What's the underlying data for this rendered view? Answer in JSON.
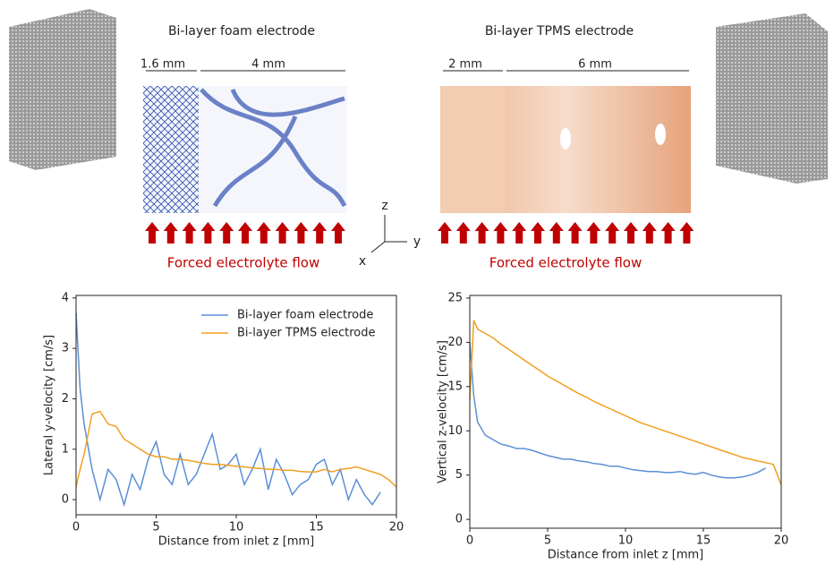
{
  "figure": {
    "foam_title": "Bi-layer foam electrode",
    "tpms_title": "Bi-layer TPMS electrode",
    "foam_dims": [
      "1.6 mm",
      "4 mm"
    ],
    "tpms_dims": [
      "2 mm",
      "6 mm"
    ],
    "flow_labels": [
      "Forced electrolyte flow",
      "Forced electrolyte flow"
    ],
    "axes_labels": {
      "z": "z",
      "y": "y",
      "x": "x"
    }
  },
  "chart_data": [
    {
      "type": "line",
      "x_label": "Distance from inlet z [mm]",
      "y_label": "Lateral y-velocity [cm/s]",
      "x": [
        0,
        0.25,
        0.5,
        1,
        1.5,
        2,
        2.5,
        3,
        3.5,
        4,
        4.5,
        5,
        5.5,
        6,
        6.5,
        7,
        7.5,
        8,
        8.5,
        9,
        9.5,
        10,
        10.5,
        11,
        11.5,
        12,
        12.5,
        13,
        13.5,
        14,
        14.5,
        15,
        15.5,
        16,
        16.5,
        17,
        17.5,
        18,
        18.5,
        19,
        19.5,
        20
      ],
      "xlim": [
        0,
        20
      ],
      "xticks": [
        0,
        5,
        10,
        15,
        20
      ],
      "ylim": [
        -0.3,
        4.05
      ],
      "yticks": [
        0,
        1,
        2,
        3,
        4
      ],
      "legend": "upper right",
      "series": [
        {
          "name": "Bi-layer foam electrode",
          "color": "#5b8fd6",
          "values": [
            3.7,
            2.2,
            1.5,
            0.6,
            0.0,
            0.6,
            0.4,
            -0.1,
            0.5,
            0.2,
            0.8,
            1.15,
            0.5,
            0.3,
            0.9,
            0.3,
            0.5,
            0.9,
            1.3,
            0.6,
            0.7,
            0.9,
            0.3,
            0.6,
            1.0,
            0.2,
            0.8,
            0.5,
            0.1,
            0.3,
            0.4,
            0.7,
            0.8,
            0.3,
            0.6,
            0.0,
            0.4,
            0.1,
            -0.1,
            0.15,
            null,
            null
          ]
        },
        {
          "name": "Bi-layer TPMS electrode",
          "color": "#f0a020",
          "values": [
            0.25,
            0.6,
            0.9,
            1.7,
            1.75,
            1.5,
            1.45,
            1.2,
            1.1,
            1.0,
            0.9,
            0.85,
            0.85,
            0.8,
            0.8,
            0.78,
            0.75,
            0.72,
            0.7,
            0.7,
            0.68,
            0.66,
            0.65,
            0.63,
            0.62,
            0.6,
            0.6,
            0.58,
            0.58,
            0.56,
            0.55,
            0.55,
            0.6,
            0.55,
            0.6,
            0.62,
            0.65,
            0.6,
            0.55,
            0.5,
            0.4,
            0.25
          ]
        }
      ]
    },
    {
      "type": "line",
      "x_label": "Distance from inlet z [mm]",
      "y_label": "Vertical z-velocity [cm/s]",
      "x": [
        0,
        0.25,
        0.5,
        1,
        1.5,
        2,
        2.5,
        3,
        3.5,
        4,
        4.5,
        5,
        5.5,
        6,
        6.5,
        7,
        7.5,
        8,
        8.5,
        9,
        9.5,
        10,
        10.5,
        11,
        11.5,
        12,
        12.5,
        13,
        13.5,
        14,
        14.5,
        15,
        15.5,
        16,
        16.5,
        17,
        17.5,
        18,
        18.5,
        19,
        19.5,
        20
      ],
      "xlim": [
        0,
        20
      ],
      "xticks": [
        0,
        5,
        10,
        15,
        20
      ],
      "ylim": [
        -1,
        25.3
      ],
      "yticks": [
        0,
        5,
        10,
        15,
        20,
        25
      ],
      "series": [
        {
          "name": "Bi-layer foam electrode",
          "color": "#5b8fd6",
          "values": [
            20,
            14,
            11,
            9.5,
            9,
            8.5,
            8.3,
            8,
            8,
            7.8,
            7.5,
            7.2,
            7.0,
            6.8,
            6.8,
            6.6,
            6.5,
            6.3,
            6.2,
            6.0,
            6.0,
            5.8,
            5.6,
            5.5,
            5.4,
            5.4,
            5.3,
            5.3,
            5.4,
            5.2,
            5.1,
            5.3,
            5.0,
            4.8,
            4.7,
            4.7,
            4.8,
            5.0,
            5.3,
            5.8,
            null,
            null
          ]
        },
        {
          "name": "Bi-layer TPMS electrode",
          "color": "#f0a020",
          "values": [
            13.5,
            22.5,
            21.5,
            21,
            20.5,
            19.8,
            19.2,
            18.6,
            18,
            17.4,
            16.8,
            16.2,
            15.7,
            15.2,
            14.7,
            14.2,
            13.8,
            13.3,
            12.9,
            12.5,
            12.1,
            11.7,
            11.3,
            10.9,
            10.6,
            10.3,
            10.0,
            9.7,
            9.4,
            9.1,
            8.8,
            8.5,
            8.2,
            7.9,
            7.6,
            7.3,
            7.0,
            6.8,
            6.6,
            6.4,
            6.2,
            3.9
          ]
        }
      ]
    }
  ]
}
